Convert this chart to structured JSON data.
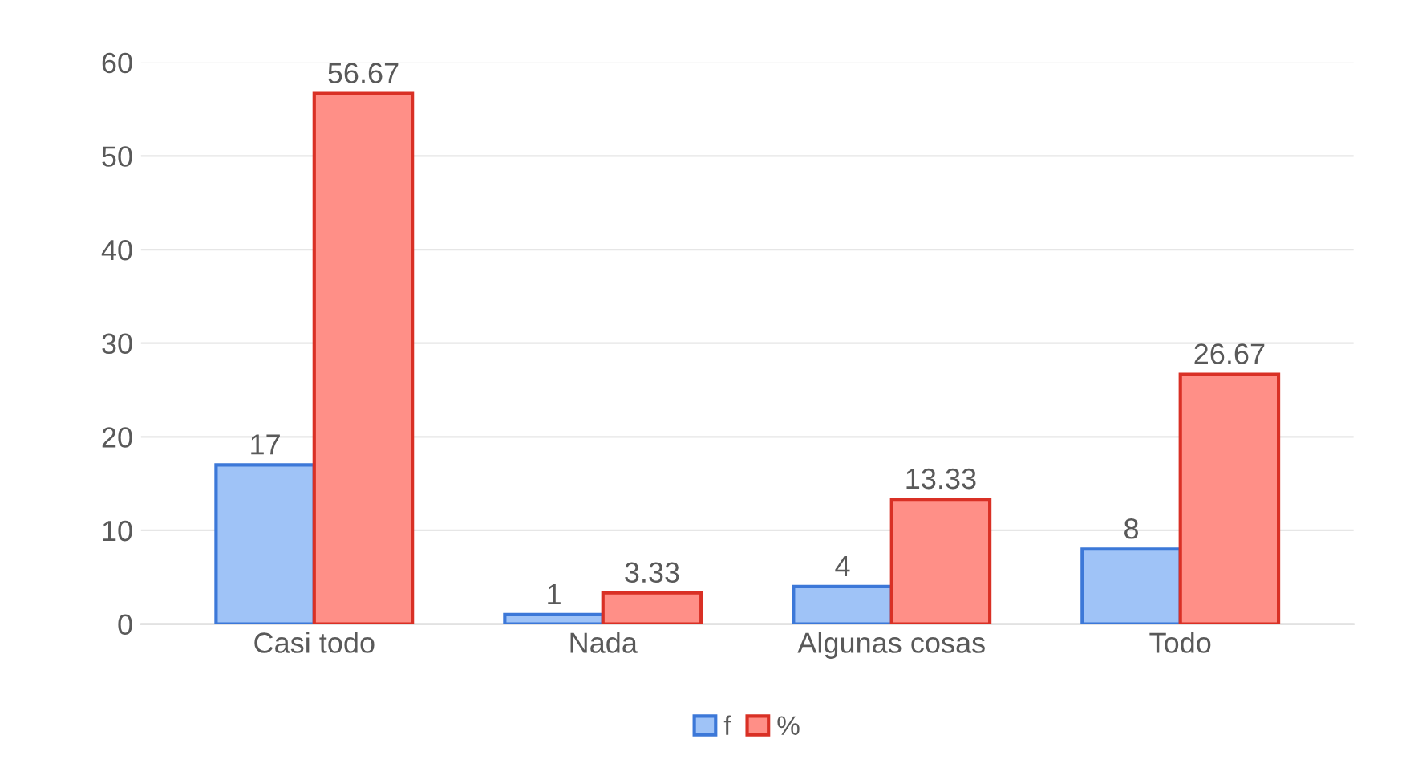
{
  "chart_data": {
    "type": "bar",
    "categories": [
      "Casi todo",
      "Nada",
      "Algunas cosas",
      "Todo"
    ],
    "series": [
      {
        "name": "f",
        "color": "#9fc3f7",
        "values": [
          17,
          1,
          4,
          8
        ]
      },
      {
        "name": "%",
        "color": "#ff8f87",
        "values": [
          56.67,
          3.33,
          13.33,
          26.67
        ]
      }
    ],
    "ylim": [
      0,
      60
    ],
    "yticks": [
      0,
      10,
      20,
      30,
      40,
      50,
      60
    ],
    "grid": "y",
    "legend": "bottom",
    "data_labels": true
  }
}
